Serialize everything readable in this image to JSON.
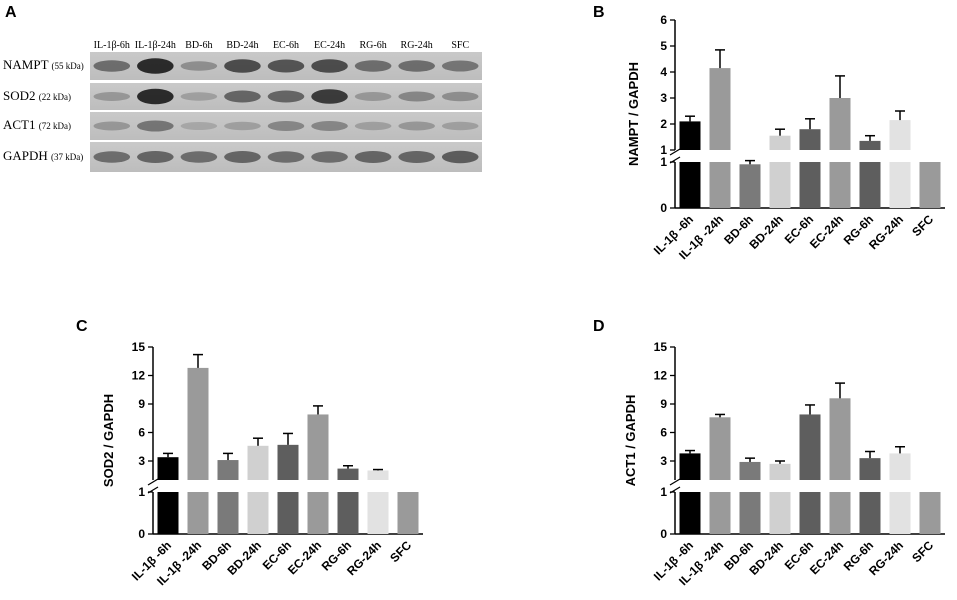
{
  "panels": [
    {
      "letter": "A"
    },
    {
      "letter": "B"
    },
    {
      "letter": "C"
    },
    {
      "letter": "D"
    }
  ],
  "blot": {
    "lanes": [
      "IL-1β-6h",
      "IL-1β-24h",
      "BD-6h",
      "BD-24h",
      "EC-6h",
      "EC-24h",
      "RG-6h",
      "RG-24h",
      "SFC"
    ],
    "rows": [
      {
        "name": "NAMPT",
        "kda": "(55 kDa)",
        "intensity": [
          0.55,
          0.95,
          0.35,
          0.75,
          0.7,
          0.75,
          0.55,
          0.55,
          0.5
        ]
      },
      {
        "name": "SOD2",
        "kda": "(22 kDa)",
        "intensity": [
          0.3,
          0.95,
          0.25,
          0.6,
          0.6,
          0.85,
          0.3,
          0.4,
          0.35
        ]
      },
      {
        "name": "ACT1",
        "kda": "(72 kDa)",
        "intensity": [
          0.3,
          0.5,
          0.2,
          0.25,
          0.4,
          0.4,
          0.25,
          0.3,
          0.25
        ]
      },
      {
        "name": "GAPDH",
        "kda": "(37 kDa)",
        "intensity": [
          0.55,
          0.6,
          0.55,
          0.6,
          0.55,
          0.55,
          0.6,
          0.6,
          0.65
        ]
      }
    ]
  },
  "chart_data": [
    {
      "type": "bar",
      "panel": "B",
      "ylabel": "NAMPT / GAPDH",
      "categories": [
        "IL-1β -6h",
        "IL-1β -24h",
        "BD-6h",
        "BD-24h",
        "EC-6h",
        "EC-24h",
        "RG-6h",
        "RG-24h",
        "SFC"
      ],
      "values": [
        2.1,
        4.15,
        0.95,
        1.55,
        1.8,
        3.0,
        1.35,
        2.15,
        1.0
      ],
      "errors": [
        0.2,
        0.7,
        0.08,
        0.25,
        0.4,
        0.85,
        0.2,
        0.35,
        0
      ],
      "colors": [
        "#000000",
        "#9a9a9a",
        "#7a7a7a",
        "#d0d0d0",
        "#5e5e5e",
        "#9a9a9a",
        "#5e5e5e",
        "#e2e2e2",
        "#9a9a9a"
      ],
      "y_axis_segments": {
        "lower": [
          0,
          1
        ],
        "upper": [
          1,
          6
        ]
      },
      "yticks_lower": [
        "0",
        "1"
      ],
      "yticks_upper": [
        "1",
        "2",
        "3",
        "4",
        "5",
        "6"
      ]
    },
    {
      "type": "bar",
      "panel": "C",
      "ylabel": "SOD2 / GAPDH",
      "categories": [
        "IL-1β -6h",
        "IL-1β -24h",
        "BD-6h",
        "BD-24h",
        "EC-6h",
        "EC-24h",
        "RG-6h",
        "RG-24h",
        "SFC"
      ],
      "values": [
        3.4,
        12.8,
        3.1,
        4.6,
        4.7,
        7.9,
        2.2,
        2.0,
        1.0
      ],
      "errors": [
        0.4,
        1.4,
        0.7,
        0.8,
        1.2,
        0.9,
        0.3,
        0.1,
        0
      ],
      "colors": [
        "#000000",
        "#9a9a9a",
        "#7a7a7a",
        "#d0d0d0",
        "#5e5e5e",
        "#9a9a9a",
        "#5e5e5e",
        "#e2e2e2",
        "#9a9a9a"
      ],
      "y_axis_segments": {
        "lower": [
          0,
          1
        ],
        "upper": [
          1,
          15
        ]
      },
      "yticks_lower": [
        "0",
        "1"
      ],
      "yticks_upper": [
        "3",
        "6",
        "9",
        "12",
        "15"
      ]
    },
    {
      "type": "bar",
      "panel": "D",
      "ylabel": "ACT1 / GAPDH",
      "categories": [
        "IL-1β -6h",
        "IL-1β -24h",
        "BD-6h",
        "BD-24h",
        "EC-6h",
        "EC-24h",
        "RG-6h",
        "RG-24h",
        "SFC"
      ],
      "values": [
        3.8,
        7.6,
        2.9,
        2.7,
        7.9,
        9.6,
        3.3,
        3.8,
        1.0
      ],
      "errors": [
        0.3,
        0.3,
        0.4,
        0.3,
        1.0,
        1.6,
        0.7,
        0.7,
        0
      ],
      "colors": [
        "#000000",
        "#9a9a9a",
        "#7a7a7a",
        "#d0d0d0",
        "#5e5e5e",
        "#9a9a9a",
        "#5e5e5e",
        "#e2e2e2",
        "#9a9a9a"
      ],
      "y_axis_segments": {
        "lower": [
          0,
          1
        ],
        "upper": [
          1,
          15
        ]
      },
      "yticks_lower": [
        "0",
        "1"
      ],
      "yticks_upper": [
        "3",
        "6",
        "9",
        "12",
        "15"
      ]
    }
  ]
}
